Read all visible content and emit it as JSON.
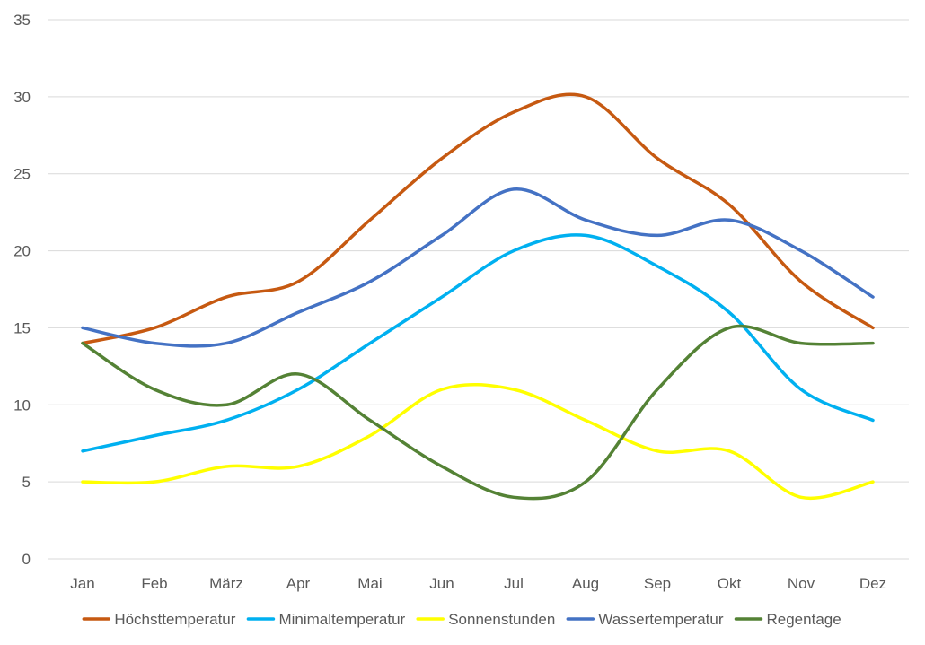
{
  "chart_data": {
    "type": "line",
    "categories": [
      "Jan",
      "Feb",
      "März",
      "Apr",
      "Mai",
      "Jun",
      "Jul",
      "Aug",
      "Sep",
      "Okt",
      "Nov",
      "Dez"
    ],
    "ylim": [
      0,
      35
    ],
    "yticks": [
      0,
      5,
      10,
      15,
      20,
      25,
      30,
      35
    ],
    "grid": true,
    "smooth": true,
    "legend_position": "bottom",
    "series": [
      {
        "name": "Höchsttemperatur",
        "color": "#C65911",
        "values": [
          14,
          15,
          17,
          18,
          22,
          26,
          29,
          30,
          26,
          23,
          18,
          15
        ]
      },
      {
        "name": "Minimaltemperatur",
        "color": "#00B0F0",
        "values": [
          7,
          8,
          9,
          11,
          14,
          17,
          20,
          21,
          19,
          16,
          11,
          9
        ]
      },
      {
        "name": "Sonnenstunden",
        "color": "#FFFF00",
        "values": [
          5,
          5,
          6,
          6,
          8,
          11,
          11,
          9,
          7,
          7,
          4,
          5
        ]
      },
      {
        "name": "Wassertemperatur",
        "color": "#4472C4",
        "values": [
          15,
          14,
          14,
          16,
          18,
          21,
          24,
          22,
          21,
          22,
          20,
          17
        ]
      },
      {
        "name": "Regentage",
        "color": "#548235",
        "values": [
          14,
          11,
          10,
          12,
          9,
          6,
          4,
          5,
          11,
          15,
          14,
          14
        ]
      }
    ]
  }
}
